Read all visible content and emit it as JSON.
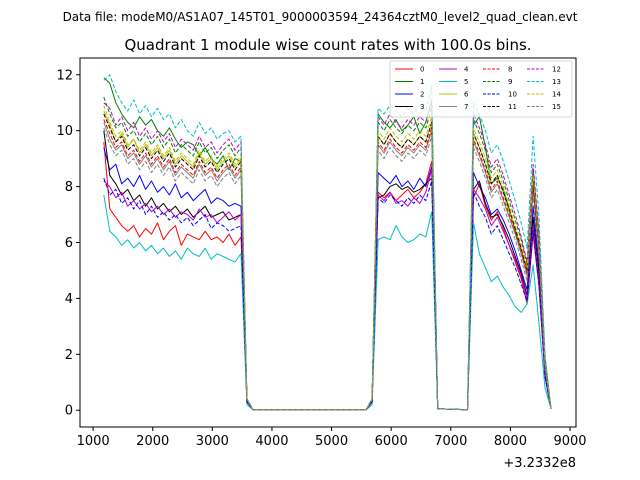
{
  "header": {
    "data_file": "Data file: modeM0/AS1A07_145T01_9000003594_24364cztM0_level2_quad_clean.evt"
  },
  "chart_data": {
    "type": "line",
    "title": "Quadrant 1 module wise count rates with 100.0s bins.",
    "xlabel": "",
    "ylabel": "",
    "x_offset_label": "+3.2332e8",
    "xlim": [
      780,
      9100
    ],
    "ylim": [
      -0.6,
      12.6
    ],
    "x_ticks": [
      1000,
      2000,
      3000,
      4000,
      5000,
      6000,
      7000,
      8000,
      9000
    ],
    "x_tick_labels": [
      "1000",
      "2000",
      "3000",
      "4000",
      "5000",
      "6000",
      "7000",
      "8000",
      "9000"
    ],
    "y_ticks": [
      0,
      2,
      4,
      6,
      8,
      10,
      12
    ],
    "y_tick_labels": [
      "0",
      "2",
      "4",
      "6",
      "8",
      "10",
      "12"
    ],
    "legend_position": "top-right",
    "x": [
      1180,
      1280,
      1380,
      1480,
      1580,
      1680,
      1780,
      1880,
      1980,
      2080,
      2180,
      2280,
      2380,
      2480,
      2580,
      2680,
      2780,
      2880,
      2980,
      3080,
      3180,
      3280,
      3380,
      3480,
      3580,
      3680,
      5580,
      5680,
      5780,
      5880,
      5980,
      6080,
      6180,
      6280,
      6380,
      6480,
      6580,
      6680,
      6780,
      7280,
      7380,
      7480,
      7580,
      7680,
      7780,
      7880,
      7980,
      8080,
      8180,
      8280,
      8380,
      8480,
      8580,
      8680
    ],
    "series": [
      {
        "name": "0",
        "color": "#ff0000",
        "dash": "solid",
        "values": [
          9.6,
          7.2,
          6.9,
          6.6,
          6.4,
          6.6,
          6.2,
          6.5,
          6.3,
          6.7,
          6.1,
          6.4,
          6.6,
          5.9,
          6.3,
          6.2,
          6.1,
          6.4,
          6.1,
          6.2,
          6.0,
          6.3,
          5.9,
          6.2,
          0.3,
          0.02,
          0.02,
          0.3,
          7.8,
          7.6,
          7.8,
          7.5,
          7.7,
          7.9,
          7.6,
          7.8,
          8.1,
          8.9,
          0.05,
          0.02,
          7.6,
          8.1,
          7.3,
          6.8,
          7.1,
          6.5,
          5.9,
          5.3,
          4.7,
          3.8,
          6.3,
          4.4,
          1.2,
          0.05
        ]
      },
      {
        "name": "1",
        "color": "#008000",
        "dash": "solid",
        "values": [
          11.9,
          11.7,
          11.0,
          10.6,
          10.3,
          10.1,
          10.5,
          10.2,
          10.4,
          10.0,
          9.8,
          10.1,
          9.7,
          9.4,
          9.6,
          9.5,
          9.1,
          9.4,
          9.0,
          8.8,
          9.1,
          8.6,
          9.0,
          8.9,
          0.4,
          0.02,
          0.02,
          0.4,
          10.6,
          10.3,
          10.1,
          10.4,
          10.0,
          10.2,
          10.5,
          9.9,
          10.3,
          11.1,
          0.05,
          0.02,
          10.2,
          10.5,
          9.4,
          8.1,
          8.3,
          7.9,
          7.2,
          6.4,
          5.6,
          5.1,
          8.6,
          6.2,
          1.9,
          0.05
        ]
      },
      {
        "name": "2",
        "color": "#0000ff",
        "dash": "solid",
        "values": [
          9.4,
          8.6,
          8.8,
          8.1,
          8.3,
          8.0,
          8.4,
          7.9,
          8.2,
          7.8,
          8.0,
          7.7,
          8.1,
          7.6,
          7.8,
          7.5,
          7.7,
          7.9,
          7.4,
          7.6,
          7.5,
          7.3,
          7.4,
          7.3,
          0.3,
          0.02,
          0.02,
          0.3,
          8.5,
          8.3,
          8.1,
          8.4,
          8.0,
          8.2,
          7.9,
          8.3,
          8.0,
          8.7,
          0.05,
          0.02,
          8.5,
          8.0,
          7.6,
          7.0,
          7.2,
          6.8,
          6.3,
          5.7,
          5.0,
          4.3,
          7.3,
          5.2,
          1.4,
          0.05
        ]
      },
      {
        "name": "3",
        "color": "#000000",
        "dash": "solid",
        "values": [
          10.0,
          8.4,
          8.1,
          7.7,
          7.9,
          7.5,
          7.7,
          7.3,
          7.6,
          7.2,
          7.4,
          7.1,
          7.3,
          7.0,
          7.2,
          6.9,
          7.1,
          7.3,
          6.9,
          7.0,
          7.1,
          6.8,
          6.9,
          7.0,
          0.3,
          0.02,
          0.02,
          0.3,
          7.6,
          7.7,
          8.0,
          8.1,
          7.9,
          8.0,
          7.8,
          7.9,
          8.1,
          8.3,
          0.05,
          0.02,
          7.9,
          8.2,
          7.4,
          6.9,
          7.0,
          6.6,
          6.1,
          5.5,
          4.9,
          4.1,
          6.9,
          4.9,
          1.3,
          0.05
        ]
      },
      {
        "name": "4",
        "color": "#bf00bf",
        "dash": "solid",
        "values": [
          8.2,
          8.0,
          7.6,
          7.8,
          7.3,
          7.5,
          7.2,
          7.4,
          7.1,
          7.3,
          7.0,
          7.2,
          6.9,
          7.1,
          7.0,
          6.8,
          7.2,
          6.9,
          7.0,
          6.7,
          6.9,
          7.1,
          6.8,
          7.0,
          0.3,
          0.02,
          0.02,
          0.3,
          7.7,
          7.5,
          7.8,
          7.4,
          7.5,
          7.3,
          7.6,
          7.4,
          7.8,
          8.6,
          0.05,
          0.02,
          7.9,
          7.6,
          7.2,
          6.6,
          6.9,
          6.4,
          5.9,
          5.4,
          4.8,
          4.0,
          6.6,
          4.6,
          1.2,
          0.05
        ]
      },
      {
        "name": "5",
        "color": "#00bfbf",
        "dash": "solid",
        "values": [
          7.7,
          6.4,
          6.2,
          5.9,
          6.1,
          5.8,
          6.0,
          5.7,
          5.9,
          5.6,
          5.8,
          5.5,
          5.7,
          5.4,
          5.8,
          5.6,
          5.5,
          5.8,
          5.4,
          5.6,
          5.5,
          5.4,
          5.3,
          5.6,
          0.2,
          0.02,
          0.02,
          0.2,
          6.1,
          6.2,
          6.1,
          6.6,
          6.2,
          6.0,
          6.1,
          6.3,
          6.2,
          7.1,
          0.05,
          0.02,
          6.7,
          5.6,
          5.1,
          4.6,
          4.8,
          4.4,
          4.1,
          3.7,
          3.5,
          3.8,
          5.2,
          3.1,
          0.8,
          0.05
        ]
      },
      {
        "name": "6",
        "color": "#bfbf00",
        "dash": "solid",
        "values": [
          10.7,
          10.2,
          9.6,
          9.9,
          9.4,
          9.7,
          9.2,
          9.5,
          9.1,
          9.4,
          9.0,
          9.3,
          8.8,
          9.1,
          8.9,
          8.7,
          9.2,
          8.8,
          9.0,
          8.6,
          8.9,
          9.1,
          8.7,
          9.0,
          0.4,
          0.02,
          0.02,
          0.4,
          9.8,
          9.5,
          9.9,
          9.6,
          9.4,
          9.7,
          9.5,
          9.8,
          9.6,
          10.3,
          0.05,
          0.02,
          9.9,
          9.4,
          8.8,
          8.1,
          8.4,
          7.8,
          7.1,
          6.5,
          5.8,
          5.0,
          8.2,
          5.9,
          1.7,
          0.05
        ]
      },
      {
        "name": "7",
        "color": "#808080",
        "dash": "solid",
        "values": [
          10.3,
          9.7,
          9.3,
          9.5,
          9.0,
          9.2,
          8.8,
          9.1,
          8.7,
          9.0,
          8.6,
          8.9,
          8.4,
          8.7,
          8.5,
          8.3,
          8.8,
          8.4,
          8.6,
          8.2,
          8.5,
          8.7,
          8.3,
          8.6,
          0.4,
          0.02,
          0.02,
          0.4,
          9.5,
          9.2,
          9.6,
          9.3,
          9.1,
          9.4,
          9.2,
          9.5,
          9.3,
          10.0,
          0.05,
          0.02,
          9.6,
          9.1,
          8.5,
          7.8,
          8.1,
          7.5,
          6.9,
          6.3,
          5.6,
          4.8,
          7.9,
          5.7,
          1.6,
          0.05
        ]
      },
      {
        "name": "8",
        "color": "#ff0000",
        "dash": "dashed",
        "values": [
          10.4,
          9.9,
          9.4,
          9.6,
          9.1,
          9.3,
          8.9,
          9.2,
          8.8,
          9.1,
          8.7,
          9.0,
          8.5,
          8.8,
          8.6,
          8.4,
          8.9,
          8.5,
          8.7,
          8.3,
          8.6,
          8.8,
          8.4,
          8.7,
          0.4,
          0.02,
          0.02,
          0.4,
          9.6,
          9.3,
          9.7,
          9.4,
          9.2,
          9.5,
          9.3,
          9.6,
          9.4,
          10.1,
          0.05,
          0.02,
          9.7,
          9.2,
          8.6,
          7.9,
          8.2,
          7.6,
          7.0,
          6.4,
          5.7,
          4.9,
          8.0,
          5.8,
          1.6,
          0.05
        ]
      },
      {
        "name": "9",
        "color": "#008000",
        "dash": "dashed",
        "values": [
          11.2,
          10.6,
          10.1,
          10.3,
          9.8,
          10.0,
          9.6,
          9.9,
          9.5,
          9.8,
          9.4,
          9.7,
          9.2,
          9.5,
          9.3,
          9.1,
          9.6,
          9.2,
          9.4,
          9.0,
          9.3,
          9.5,
          9.1,
          9.4,
          0.4,
          0.02,
          0.02,
          0.4,
          10.3,
          10.0,
          10.4,
          10.1,
          9.9,
          10.2,
          10.0,
          10.3,
          10.1,
          10.8,
          0.05,
          0.02,
          10.4,
          9.9,
          9.3,
          8.5,
          8.8,
          8.2,
          7.5,
          6.8,
          6.1,
          5.2,
          8.6,
          6.2,
          1.8,
          0.05
        ]
      },
      {
        "name": "10",
        "color": "#0000ff",
        "dash": "dashed",
        "values": [
          8.3,
          7.7,
          7.9,
          7.4,
          7.6,
          7.2,
          7.5,
          7.0,
          7.3,
          6.9,
          7.1,
          6.8,
          7.0,
          6.7,
          6.9,
          6.6,
          6.8,
          7.0,
          6.5,
          6.7,
          6.6,
          6.4,
          6.5,
          6.6,
          0.3,
          0.02,
          0.02,
          0.3,
          7.6,
          7.4,
          7.7,
          7.5,
          7.3,
          7.6,
          7.4,
          7.7,
          7.5,
          8.2,
          0.05,
          0.02,
          7.8,
          7.3,
          6.9,
          6.3,
          6.6,
          6.1,
          5.6,
          5.1,
          4.5,
          3.9,
          6.4,
          4.5,
          1.2,
          0.05
        ]
      },
      {
        "name": "11",
        "color": "#000000",
        "dash": "dashed",
        "values": [
          10.6,
          10.1,
          9.6,
          9.8,
          9.3,
          9.5,
          9.1,
          9.4,
          9.0,
          9.3,
          8.9,
          9.2,
          8.7,
          9.0,
          8.8,
          8.6,
          9.1,
          8.7,
          8.9,
          8.5,
          8.8,
          9.0,
          8.6,
          8.9,
          0.4,
          0.02,
          0.02,
          0.4,
          9.8,
          9.5,
          9.9,
          9.6,
          9.4,
          9.7,
          9.5,
          9.8,
          9.6,
          10.3,
          0.05,
          0.02,
          9.9,
          9.4,
          8.8,
          8.1,
          8.4,
          7.8,
          7.2,
          6.5,
          5.8,
          5.0,
          8.2,
          5.9,
          1.7,
          0.05
        ]
      },
      {
        "name": "12",
        "color": "#bf00bf",
        "dash": "dashed",
        "values": [
          11.0,
          10.8,
          10.2,
          10.5,
          10.0,
          10.3,
          9.8,
          10.1,
          9.7,
          10.0,
          9.6,
          9.9,
          9.4,
          9.7,
          9.5,
          9.3,
          9.8,
          9.4,
          9.6,
          9.2,
          9.5,
          9.7,
          9.3,
          9.6,
          0.4,
          0.02,
          0.02,
          0.4,
          10.5,
          10.2,
          10.6,
          10.3,
          10.1,
          10.4,
          10.2,
          10.5,
          10.3,
          11.0,
          0.05,
          0.02,
          10.6,
          10.1,
          9.5,
          8.7,
          9.0,
          8.4,
          7.7,
          7.0,
          6.2,
          5.3,
          8.8,
          6.3,
          1.8,
          0.05
        ]
      },
      {
        "name": "13",
        "color": "#00bfbf",
        "dash": "dashed",
        "values": [
          11.8,
          12.0,
          11.4,
          11.0,
          10.7,
          11.1,
          10.6,
          10.9,
          10.5,
          10.8,
          10.4,
          10.6,
          10.1,
          10.4,
          10.0,
          9.8,
          10.3,
          9.9,
          10.1,
          9.7,
          9.9,
          10.0,
          9.6,
          9.8,
          0.4,
          0.02,
          0.02,
          0.4,
          10.8,
          10.6,
          10.9,
          10.7,
          10.5,
          10.8,
          10.6,
          10.9,
          10.7,
          11.6,
          0.05,
          0.02,
          11.0,
          10.6,
          10.0,
          9.2,
          9.5,
          8.9,
          8.2,
          7.5,
          6.7,
          5.8,
          9.8,
          6.9,
          2.0,
          0.05
        ]
      },
      {
        "name": "14",
        "color": "#bfbf00",
        "dash": "dashed",
        "values": [
          10.9,
          10.3,
          9.8,
          10.0,
          9.5,
          9.7,
          9.3,
          9.6,
          9.2,
          9.5,
          9.1,
          9.4,
          8.9,
          9.2,
          9.0,
          8.8,
          9.3,
          8.9,
          9.1,
          8.7,
          9.0,
          9.2,
          8.8,
          9.1,
          0.4,
          0.02,
          0.02,
          0.4,
          10.0,
          9.7,
          10.1,
          9.8,
          9.6,
          9.9,
          9.7,
          10.0,
          9.8,
          10.5,
          0.05,
          0.02,
          10.1,
          9.6,
          9.0,
          8.3,
          8.6,
          8.0,
          7.3,
          6.6,
          5.9,
          5.1,
          8.4,
          6.0,
          1.7,
          0.05
        ]
      },
      {
        "name": "15",
        "color": "#808080",
        "dash": "dashed",
        "values": [
          10.1,
          9.5,
          9.1,
          9.3,
          8.8,
          9.0,
          8.6,
          8.9,
          8.5,
          8.8,
          8.4,
          8.7,
          8.2,
          8.5,
          8.3,
          8.1,
          8.6,
          8.2,
          8.4,
          8.0,
          8.3,
          8.5,
          8.1,
          8.4,
          0.4,
          0.02,
          0.02,
          0.4,
          9.3,
          9.0,
          9.4,
          9.1,
          8.9,
          9.2,
          9.0,
          9.3,
          9.1,
          9.8,
          0.05,
          0.02,
          9.4,
          8.9,
          8.3,
          7.6,
          7.9,
          7.3,
          6.7,
          6.1,
          5.4,
          4.6,
          7.7,
          5.5,
          1.5,
          0.05
        ]
      }
    ]
  }
}
